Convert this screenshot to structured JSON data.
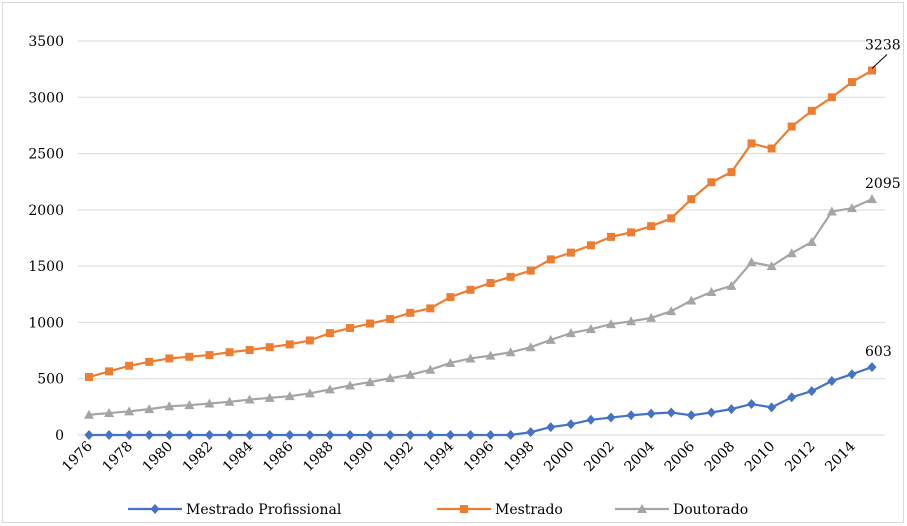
{
  "chart_data": {
    "type": "line",
    "title": "",
    "xlabel": "",
    "ylabel": "",
    "ylim": [
      0,
      3500
    ],
    "yticks": [
      0,
      500,
      1000,
      1500,
      2000,
      2500,
      3000,
      3500
    ],
    "x": [
      1976,
      1977,
      1978,
      1979,
      1980,
      1981,
      1982,
      1983,
      1984,
      1985,
      1986,
      1987,
      1988,
      1989,
      1990,
      1991,
      1992,
      1993,
      1994,
      1995,
      1996,
      1997,
      1998,
      1999,
      2000,
      2001,
      2002,
      2003,
      2004,
      2005,
      2006,
      2007,
      2008,
      2009,
      2010,
      2011,
      2012,
      2013,
      2014,
      2015
    ],
    "xtick_labels": [
      "1976",
      "1978",
      "1980",
      "1982",
      "1984",
      "1986",
      "1988",
      "1990",
      "1992",
      "1994",
      "1996",
      "1998",
      "2000",
      "2002",
      "2004",
      "2006",
      "2008",
      "2010",
      "2012",
      "2014"
    ],
    "grid": true,
    "legend_position": "bottom",
    "series": [
      {
        "name": "Mestrado Profissional",
        "color": "#4472c4",
        "marker": "diamond",
        "values": [
          0,
          0,
          0,
          0,
          0,
          0,
          0,
          0,
          0,
          0,
          0,
          0,
          0,
          0,
          0,
          0,
          0,
          0,
          0,
          0,
          0,
          0,
          25,
          70,
          95,
          135,
          155,
          175,
          190,
          200,
          175,
          200,
          230,
          275,
          245,
          335,
          390,
          480,
          540,
          603
        ]
      },
      {
        "name": "Mestrado",
        "color": "#ed7d31",
        "marker": "square",
        "values": [
          515,
          565,
          615,
          650,
          680,
          695,
          710,
          735,
          755,
          780,
          805,
          840,
          905,
          950,
          990,
          1030,
          1085,
          1125,
          1225,
          1290,
          1350,
          1405,
          1460,
          1560,
          1620,
          1685,
          1760,
          1800,
          1855,
          1925,
          2095,
          2245,
          2335,
          2590,
          2545,
          2740,
          2880,
          3000,
          3135,
          3238
        ]
      },
      {
        "name": "Doutorado",
        "color": "#a5a5a5",
        "marker": "triangle",
        "values": [
          180,
          195,
          210,
          230,
          255,
          265,
          280,
          295,
          315,
          330,
          345,
          370,
          405,
          440,
          470,
          505,
          535,
          580,
          640,
          680,
          705,
          735,
          780,
          845,
          905,
          940,
          985,
          1010,
          1040,
          1100,
          1195,
          1270,
          1325,
          1535,
          1500,
          1615,
          1715,
          1985,
          2015,
          2095
        ]
      }
    ],
    "annotations": [
      {
        "series": "Mestrado",
        "text": "3238"
      },
      {
        "series": "Doutorado",
        "text": "2095"
      },
      {
        "series": "Mestrado Profissional",
        "text": "603"
      }
    ]
  }
}
